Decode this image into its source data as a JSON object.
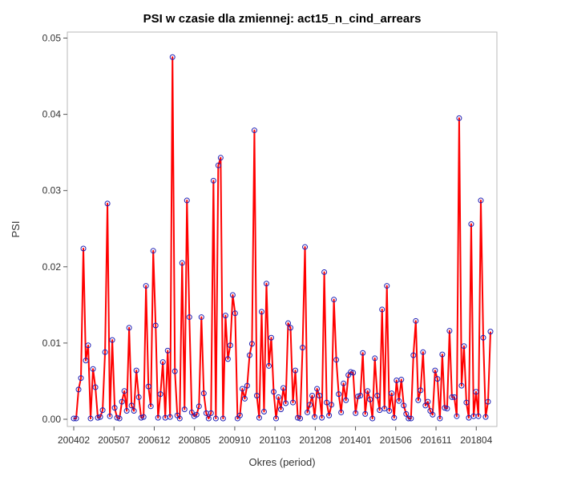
{
  "chart_data": {
    "type": "line",
    "title": "PSI w czasie dla zmiennej: act15_n_cind_arrears",
    "xlabel": "Okres (period)",
    "ylabel": "PSI",
    "ylim": [
      0,
      0.05
    ],
    "y_ticks": [
      "0.00",
      "0.01",
      "0.02",
      "0.03",
      "0.04",
      "0.05"
    ],
    "x_ticks": [
      "200402",
      "200507",
      "200612",
      "200805",
      "200910",
      "201103",
      "201208",
      "201401",
      "201506",
      "201611",
      "201804"
    ],
    "x_start": "200402",
    "x_end": "201810",
    "grid": false,
    "legend": "none",
    "colors": {
      "line": "#ff0000",
      "marker": "#1f1fb4"
    },
    "series": [
      {
        "values": [
          0.0001,
          0.0001,
          0.0039,
          0.0054,
          0.0224,
          0.0077,
          0.0097,
          0.0001,
          0.0066,
          0.0042,
          0.0002,
          0.0003,
          0.0012,
          0.0088,
          0.0283,
          0.0004,
          0.0104,
          0.0015,
          0.0002,
          0.0001,
          0.0023,
          0.0037,
          0.0011,
          0.012,
          0.0018,
          0.0011,
          0.0064,
          0.0029,
          0.0002,
          0.0003,
          0.0175,
          0.0043,
          0.0017,
          0.0221,
          0.0123,
          0.0002,
          0.0033,
          0.0075,
          0.0002,
          0.009,
          0.0003,
          0.0475,
          0.0063,
          0.0005,
          0.0001,
          0.0205,
          0.0013,
          0.0287,
          0.0134,
          0.0009,
          0.0004,
          0.0006,
          0.0017,
          0.0134,
          0.0034,
          0.0008,
          0.0001,
          0.0008,
          0.0313,
          0.0001,
          0.0333,
          0.0343,
          0.0001,
          0.0136,
          0.0079,
          0.0097,
          0.0163,
          0.0139,
          0.0001,
          0.0005,
          0.004,
          0.0027,
          0.0044,
          0.0084,
          0.0099,
          0.0379,
          0.0031,
          0.0002,
          0.0141,
          0.001,
          0.0178,
          0.007,
          0.0107,
          0.0036,
          0.0001,
          0.0029,
          0.0013,
          0.0041,
          0.0021,
          0.0126,
          0.012,
          0.0022,
          0.0064,
          0.0002,
          0.0001,
          0.0094,
          0.0226,
          0.0009,
          0.0019,
          0.0031,
          0.0003,
          0.004,
          0.0031,
          0.0002,
          0.0193,
          0.0022,
          0.0005,
          0.0019,
          0.0157,
          0.0078,
          0.0033,
          0.0009,
          0.0047,
          0.0025,
          0.0058,
          0.0062,
          0.0061,
          0.0008,
          0.003,
          0.0031,
          0.0087,
          0.0007,
          0.0037,
          0.0026,
          0.0001,
          0.008,
          0.0031,
          0.0012,
          0.0144,
          0.0014,
          0.0175,
          0.0011,
          0.0034,
          0.0002,
          0.0051,
          0.0024,
          0.0052,
          0.0018,
          0.0007,
          0.0001,
          0.0001,
          0.0084,
          0.0129,
          0.0025,
          0.0038,
          0.0088,
          0.0018,
          0.0023,
          0.0011,
          0.0006,
          0.0064,
          0.0053,
          0.0001,
          0.0085,
          0.0015,
          0.0014,
          0.0116,
          0.0029,
          0.0029,
          0.0004,
          0.0395,
          0.0044,
          0.0096,
          0.0022,
          0.0002,
          0.0256,
          0.0004,
          0.0036,
          0.0004,
          0.0287,
          0.0107,
          0.0003,
          0.0023,
          0.0115
        ]
      }
    ]
  }
}
